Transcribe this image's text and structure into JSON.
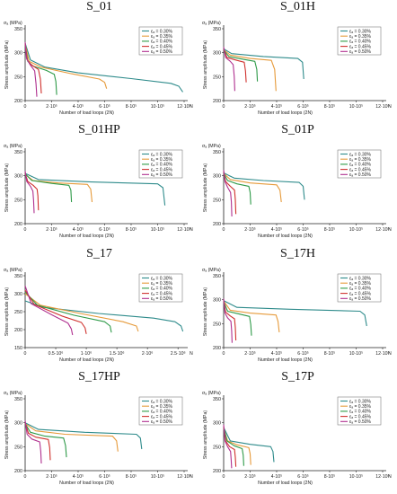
{
  "chart_data": [
    {
      "type": "line",
      "title": "S_01",
      "ylabel": "Stress amplitude (MPa)",
      "yunit": "σₐ (MPa)",
      "xlabel": "Number of load loops (2N)",
      "xunit": "N",
      "xlim": [
        0,
        1200000
      ],
      "ylim": [
        200,
        350
      ],
      "xticks": [
        0,
        200000,
        400000,
        600000,
        800000,
        1000000,
        1200000
      ],
      "xtick_labels": [
        "0",
        "2·10⁵",
        "4·10⁵",
        "6·10⁵",
        "8·10⁵",
        "10·10⁵",
        "12·10⁵"
      ],
      "yticks": [
        200,
        250,
        300,
        350
      ],
      "series": [
        {
          "name": "εₐ = 0.30%",
          "color": "#2e8b8b",
          "x": [
            0,
            40000,
            150000,
            400000,
            800000,
            1100000,
            1160000,
            1190000
          ],
          "y": [
            320,
            285,
            270,
            258,
            246,
            236,
            230,
            218
          ]
        },
        {
          "name": "εₐ = 0.35%",
          "color": "#e69a3a",
          "x": [
            0,
            30000,
            120000,
            350000,
            560000,
            600000,
            615000
          ],
          "y": [
            318,
            282,
            270,
            256,
            245,
            238,
            225
          ]
        },
        {
          "name": "εₐ = 0.40%",
          "color": "#2e9a48",
          "x": [
            0,
            20000,
            60000,
            160000,
            220000,
            232000,
            238000
          ],
          "y": [
            316,
            282,
            272,
            263,
            255,
            240,
            212
          ]
        },
        {
          "name": "εₐ = 0.45%",
          "color": "#d0312d",
          "x": [
            0,
            15000,
            45000,
            100000,
            115000,
            122000
          ],
          "y": [
            320,
            285,
            275,
            265,
            245,
            215
          ]
        },
        {
          "name": "εₐ = 0.50%",
          "color": "#b0308f",
          "x": [
            0,
            10000,
            35000,
            72000,
            82000,
            88000
          ],
          "y": [
            322,
            288,
            276,
            262,
            235,
            208
          ]
        }
      ]
    },
    {
      "type": "line",
      "title": "S_01H",
      "ylabel": "Stress amplitude (MPa)",
      "yunit": "σₐ (MPa)",
      "xlabel": "Number of load loops (2N)",
      "xunit": "N",
      "xlim": [
        0,
        1200000
      ],
      "ylim": [
        200,
        350
      ],
      "xticks": [
        0,
        200000,
        400000,
        600000,
        800000,
        1000000,
        1200000
      ],
      "xtick_labels": [
        "0",
        "2·10⁵",
        "4·10⁵",
        "6·10⁵",
        "8·10⁵",
        "10·10⁵",
        "12·10⁵"
      ],
      "yticks": [
        200,
        250,
        300,
        350
      ],
      "series": [
        {
          "name": "εₐ = 0.30%",
          "color": "#2e8b8b",
          "x": [
            0,
            60000,
            300000,
            560000,
            595000,
            605000
          ],
          "y": [
            308,
            298,
            292,
            288,
            280,
            245
          ]
        },
        {
          "name": "εₐ = 0.35%",
          "color": "#e69a3a",
          "x": [
            0,
            50000,
            200000,
            360000,
            385000,
            395000
          ],
          "y": [
            306,
            295,
            288,
            284,
            265,
            220
          ]
        },
        {
          "name": "εₐ = 0.40%",
          "color": "#2e9a48",
          "x": [
            0,
            40000,
            150000,
            235000,
            250000,
            255000
          ],
          "y": [
            305,
            292,
            286,
            282,
            265,
            240
          ]
        },
        {
          "name": "εₐ = 0.45%",
          "color": "#d0312d",
          "x": [
            0,
            25000,
            100000,
            155000,
            165000,
            170000
          ],
          "y": [
            307,
            290,
            284,
            280,
            262,
            238
          ]
        },
        {
          "name": "εₐ = 0.50%",
          "color": "#b0308f",
          "x": [
            0,
            15000,
            50000,
            72000,
            80000,
            84000
          ],
          "y": [
            312,
            290,
            282,
            275,
            250,
            220
          ]
        }
      ]
    },
    {
      "type": "line",
      "title": "S_01HP",
      "ylabel": "Stress amplitude (MPa)",
      "yunit": "σₐ (MPa)",
      "xlabel": "Number of load loops (2N)",
      "xunit": "N",
      "xlim": [
        0,
        1200000
      ],
      "ylim": [
        200,
        350
      ],
      "xticks": [
        0,
        200000,
        400000,
        600000,
        800000,
        1000000,
        1200000
      ],
      "xtick_labels": [
        "0",
        "2·10⁵",
        "4·10⁵",
        "6·10⁵",
        "8·10⁵",
        "10·10⁵",
        "12·10⁵"
      ],
      "yticks": [
        200,
        250,
        300,
        350
      ],
      "series": [
        {
          "name": "εₐ = 0.30%",
          "color": "#2e8b8b",
          "x": [
            0,
            100000,
            500000,
            1000000,
            1040000,
            1055000
          ],
          "y": [
            305,
            292,
            287,
            283,
            275,
            238
          ]
        },
        {
          "name": "εₐ = 0.35%",
          "color": "#e69a3a",
          "x": [
            0,
            60000,
            250000,
            470000,
            495000,
            505000
          ],
          "y": [
            303,
            290,
            285,
            282,
            272,
            245
          ]
        },
        {
          "name": "εₐ = 0.40%",
          "color": "#2e9a48",
          "x": [
            0,
            50000,
            200000,
            330000,
            345000,
            350000
          ],
          "y": [
            304,
            290,
            284,
            280,
            270,
            245
          ]
        },
        {
          "name": "εₐ = 0.45%",
          "color": "#d0312d",
          "x": [
            0,
            20000,
            60000,
            90000,
            96000,
            100000
          ],
          "y": [
            306,
            288,
            280,
            272,
            258,
            228
          ]
        },
        {
          "name": "εₐ = 0.50%",
          "color": "#b0308f",
          "x": [
            0,
            12000,
            40000,
            58000,
            64000,
            68000
          ],
          "y": [
            310,
            288,
            278,
            268,
            248,
            222
          ]
        }
      ]
    },
    {
      "type": "line",
      "title": "S_01P",
      "ylabel": "Stress amplitude (MPa)",
      "yunit": "σₐ (MPa)",
      "xlabel": "Number of load loops (2N)",
      "xunit": "N",
      "xlim": [
        0,
        1200000
      ],
      "ylim": [
        200,
        350
      ],
      "xticks": [
        0,
        200000,
        400000,
        600000,
        800000,
        1000000,
        1200000
      ],
      "xtick_labels": [
        "0",
        "2·10⁵",
        "4·10⁵",
        "6·10⁵",
        "8·10⁵",
        "10·10⁵",
        "12·10⁵"
      ],
      "yticks": [
        200,
        250,
        300,
        350
      ],
      "series": [
        {
          "name": "εₐ = 0.30%",
          "color": "#2e8b8b",
          "x": [
            0,
            80000,
            300000,
            570000,
            600000,
            610000
          ],
          "y": [
            306,
            295,
            290,
            286,
            278,
            250
          ]
        },
        {
          "name": "εₐ = 0.35%",
          "color": "#e69a3a",
          "x": [
            0,
            50000,
            200000,
            400000,
            425000,
            435000
          ],
          "y": [
            305,
            292,
            285,
            281,
            270,
            245
          ]
        },
        {
          "name": "εₐ = 0.40%",
          "color": "#2e9a48",
          "x": [
            0,
            30000,
            100000,
            190000,
            200000,
            205000
          ],
          "y": [
            305,
            290,
            283,
            278,
            265,
            240
          ]
        },
        {
          "name": "εₐ = 0.45%",
          "color": "#d0312d",
          "x": [
            0,
            15000,
            50000,
            82000,
            88000,
            92000
          ],
          "y": [
            308,
            288,
            278,
            270,
            250,
            220
          ]
        },
        {
          "name": "εₐ = 0.50%",
          "color": "#b0308f",
          "x": [
            0,
            10000,
            30000,
            52000,
            58000,
            62000
          ],
          "y": [
            312,
            288,
            276,
            265,
            245,
            215
          ]
        }
      ]
    },
    {
      "type": "line",
      "title": "S_17",
      "ylabel": "Stress amplitude (MPa)",
      "yunit": "σₐ (MPa)",
      "xlabel": "Number of load loops (2N)",
      "xunit": "N",
      "xlim": [
        0,
        2600000
      ],
      "ylim": [
        150,
        350
      ],
      "xticks": [
        0,
        500000,
        1000000,
        1500000,
        2000000,
        2500000
      ],
      "xtick_labels": [
        "0",
        "0.5·10⁶",
        "1·10⁶",
        "1.5·10⁶",
        "2·10⁶",
        "2.5·10⁶"
      ],
      "yticks": [
        150,
        200,
        250,
        300,
        350
      ],
      "series": [
        {
          "name": "εₐ = 0.30%",
          "color": "#2e8b8b",
          "x": [
            0,
            300000,
            1200000,
            2100000,
            2450000,
            2550000,
            2580000
          ],
          "y": [
            280,
            262,
            245,
            232,
            222,
            210,
            195
          ]
        },
        {
          "name": "εₐ = 0.35%",
          "color": "#e69a3a",
          "x": [
            0,
            250000,
            900000,
            1600000,
            1820000,
            1850000
          ],
          "y": [
            300,
            268,
            245,
            222,
            210,
            195
          ]
        },
        {
          "name": "εₐ = 0.40%",
          "color": "#2e9a48",
          "x": [
            0,
            200000,
            800000,
            1300000,
            1390000,
            1410000
          ],
          "y": [
            305,
            268,
            240,
            222,
            210,
            192
          ]
        },
        {
          "name": "εₐ = 0.45%",
          "color": "#d0312d",
          "x": [
            0,
            150000,
            600000,
            920000,
            980000,
            1000000
          ],
          "y": [
            310,
            270,
            238,
            220,
            205,
            188
          ]
        },
        {
          "name": "εₐ = 0.50%",
          "color": "#b0308f",
          "x": [
            0,
            100000,
            450000,
            700000,
            755000,
            775000
          ],
          "y": [
            322,
            272,
            240,
            218,
            202,
            185
          ]
        }
      ]
    },
    {
      "type": "line",
      "title": "S_17H",
      "ylabel": "Stress amplitude (MPa)",
      "yunit": "σₐ (MPa)",
      "xlabel": "Number of load loops (2N)",
      "xunit": "N",
      "xlim": [
        0,
        1200000
      ],
      "ylim": [
        200,
        350
      ],
      "xticks": [
        0,
        200000,
        400000,
        600000,
        800000,
        1000000,
        1200000
      ],
      "xtick_labels": [
        "0",
        "2·10⁵",
        "4·10⁵",
        "6·10⁵",
        "8·10⁵",
        "10·10⁵",
        "12·10⁵"
      ],
      "yticks": [
        200,
        250,
        300,
        350
      ],
      "series": [
        {
          "name": "εₐ = 0.30%",
          "color": "#2e8b8b",
          "x": [
            0,
            100000,
            500000,
            1030000,
            1065000,
            1080000
          ],
          "y": [
            298,
            284,
            280,
            276,
            268,
            245
          ]
        },
        {
          "name": "εₐ = 0.35%",
          "color": "#e69a3a",
          "x": [
            0,
            50000,
            200000,
            395000,
            410000,
            420000
          ],
          "y": [
            297,
            278,
            272,
            268,
            255,
            232
          ]
        },
        {
          "name": "εₐ = 0.40%",
          "color": "#2e9a48",
          "x": [
            0,
            30000,
            120000,
            195000,
            205000,
            210000
          ],
          "y": [
            296,
            276,
            270,
            265,
            248,
            225
          ]
        },
        {
          "name": "εₐ = 0.45%",
          "color": "#d0312d",
          "x": [
            0,
            15000,
            50000,
            82000,
            88000,
            92000
          ],
          "y": [
            298,
            274,
            266,
            260,
            242,
            215
          ]
        },
        {
          "name": "εₐ = 0.50%",
          "color": "#b0308f",
          "x": [
            0,
            10000,
            30000,
            55000,
            60000,
            64000
          ],
          "y": [
            302,
            272,
            262,
            255,
            235,
            210
          ]
        }
      ]
    },
    {
      "type": "line",
      "title": "S_17HP",
      "ylabel": "Stress amplitude (MPa)",
      "yunit": "σₐ (MPa)",
      "xlabel": "Number of load loops (2N)",
      "xunit": "N",
      "xlim": [
        0,
        1200000
      ],
      "ylim": [
        200,
        350
      ],
      "xticks": [
        0,
        200000,
        400000,
        600000,
        800000,
        1000000,
        1200000
      ],
      "xtick_labels": [
        "0",
        "2·10⁵",
        "4·10⁵",
        "6·10⁵",
        "8·10⁵",
        "10·10⁵",
        "12·10⁵"
      ],
      "yticks": [
        200,
        250,
        300,
        350
      ],
      "series": [
        {
          "name": "εₐ = 0.30%",
          "color": "#2e8b8b",
          "x": [
            0,
            100000,
            450000,
            840000,
            870000,
            880000
          ],
          "y": [
            300,
            286,
            280,
            276,
            268,
            245
          ]
        },
        {
          "name": "εₐ = 0.35%",
          "color": "#e69a3a",
          "x": [
            0,
            80000,
            300000,
            660000,
            690000,
            700000
          ],
          "y": [
            298,
            283,
            276,
            272,
            262,
            240
          ]
        },
        {
          "name": "εₐ = 0.40%",
          "color": "#2e9a48",
          "x": [
            0,
            40000,
            150000,
            290000,
            305000,
            312000
          ],
          "y": [
            298,
            280,
            272,
            268,
            252,
            228
          ]
        },
        {
          "name": "εₐ = 0.45%",
          "color": "#d0312d",
          "x": [
            0,
            25000,
            80000,
            175000,
            185000,
            190000
          ],
          "y": [
            300,
            278,
            270,
            265,
            248,
            222
          ]
        },
        {
          "name": "εₐ = 0.50%",
          "color": "#b0308f",
          "x": [
            0,
            15000,
            50000,
            110000,
            118000,
            122000
          ],
          "y": [
            305,
            276,
            266,
            260,
            240,
            215
          ]
        }
      ]
    },
    {
      "type": "line",
      "title": "S_17P",
      "ylabel": "Stress amplitude (MPa)",
      "yunit": "σₐ (MPa)",
      "xlabel": "Number of load loops (2N)",
      "xunit": "N",
      "xlim": [
        0,
        1200000
      ],
      "ylim": [
        200,
        350
      ],
      "xticks": [
        0,
        200000,
        400000,
        600000,
        800000,
        1000000,
        1200000
      ],
      "xtick_labels": [
        "0",
        "2·10⁵",
        "4·10⁵",
        "6·10⁵",
        "8·10⁵",
        "10·10⁵",
        "12·10⁵"
      ],
      "yticks": [
        200,
        250,
        300,
        350
      ],
      "series": [
        {
          "name": "εₐ = 0.30%",
          "color": "#2e8b8b",
          "x": [
            0,
            50000,
            200000,
            355000,
            372000,
            380000
          ],
          "y": [
            290,
            262,
            255,
            250,
            240,
            218
          ]
        },
        {
          "name": "εₐ = 0.35%",
          "color": "#e69a3a",
          "x": [
            0,
            30000,
            100000,
            190000,
            200000,
            205000
          ],
          "y": [
            288,
            262,
            254,
            248,
            235,
            212
          ]
        },
        {
          "name": "εₐ = 0.40%",
          "color": "#2e9a48",
          "x": [
            0,
            25000,
            80000,
            140000,
            148000,
            152000
          ],
          "y": [
            290,
            262,
            252,
            246,
            232,
            210
          ]
        },
        {
          "name": "εₐ = 0.45%",
          "color": "#d0312d",
          "x": [
            0,
            15000,
            45000,
            82000,
            88000,
            92000
          ],
          "y": [
            292,
            262,
            250,
            244,
            228,
            208
          ]
        },
        {
          "name": "εₐ = 0.50%",
          "color": "#b0308f",
          "x": [
            0,
            10000,
            30000,
            52000,
            57000,
            60000
          ],
          "y": [
            296,
            262,
            250,
            240,
            222,
            205
          ]
        }
      ]
    }
  ]
}
